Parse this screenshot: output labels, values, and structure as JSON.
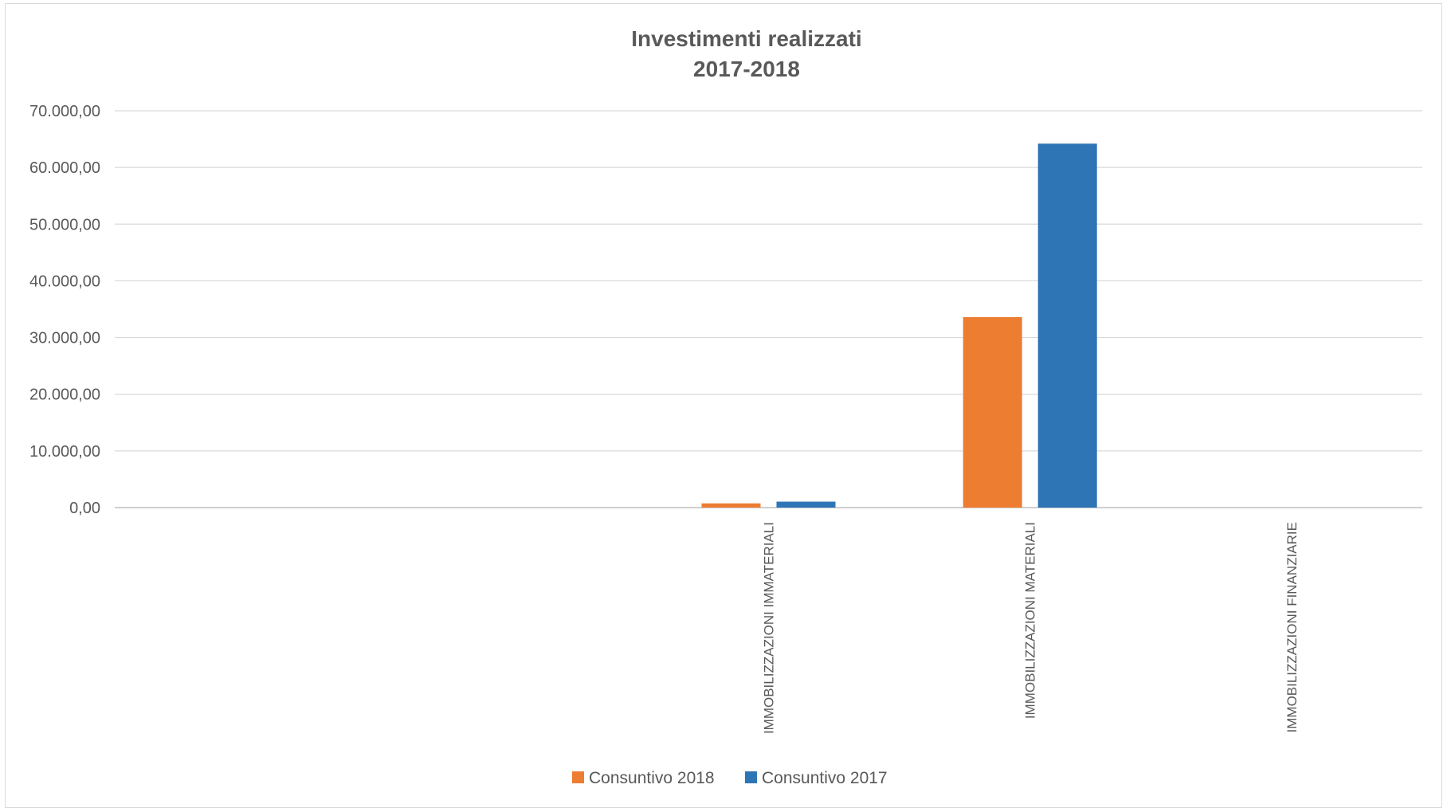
{
  "chart_data": {
    "type": "bar",
    "title": "Investimenti realizzati",
    "subtitle": "2017-2018",
    "xlabel": "",
    "ylabel": "",
    "categories": [
      "",
      "",
      "IMMOBILIZZAZIONI IMMATERIALI",
      "IMMOBILIZZAZIONI MATERIALI",
      "IMMOBILIZZAZIONI FINANZIARIE"
    ],
    "series": [
      {
        "name": "Consuntivo 2018",
        "color": "#ED7D31",
        "values": [
          0,
          0,
          750,
          33600,
          0
        ]
      },
      {
        "name": "Consuntivo 2017",
        "color": "#2E75B6",
        "values": [
          0,
          0,
          1050,
          64200,
          0
        ]
      }
    ],
    "ylim": [
      0,
      70000
    ],
    "yticks": [
      "0,00",
      "10.000,00",
      "20.000,00",
      "30.000,00",
      "40.000,00",
      "50.000,00",
      "60.000,00",
      "70.000,00"
    ],
    "grid": true,
    "legend": "bottom"
  }
}
